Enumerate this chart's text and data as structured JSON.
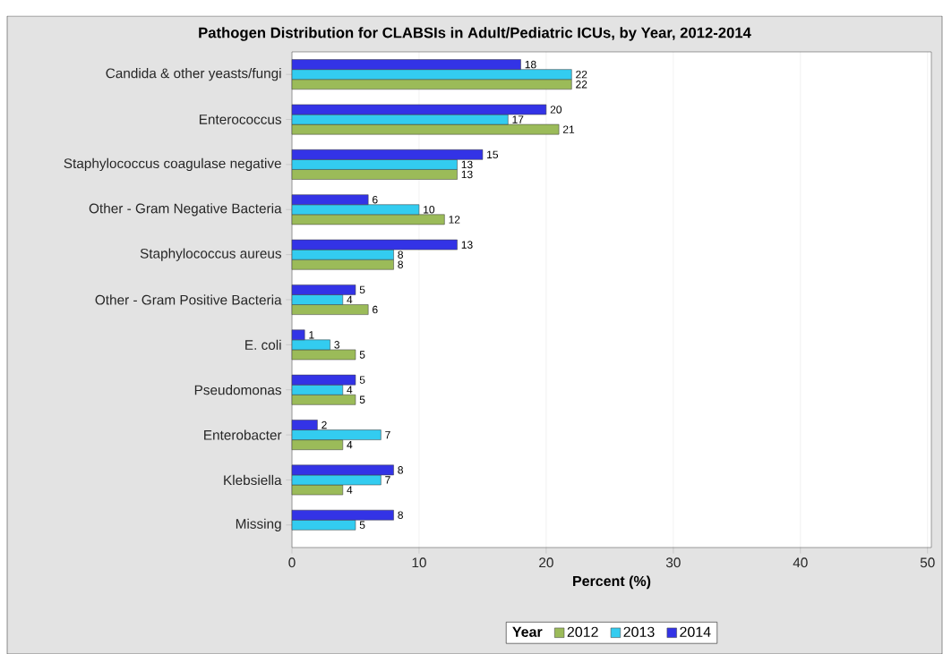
{
  "chart_data": {
    "type": "bar",
    "orientation": "horizontal",
    "title": "Pathogen Distribution for CLABSIs in Adult/Pediatric ICUs, by Year, 2012-2014",
    "xlabel": "Percent (%)",
    "legend_title": "Year",
    "categories": [
      "Candida & other yeasts/fungi",
      "Enterococcus",
      "Staphylococcus coagulase negative",
      "Other - Gram Negative Bacteria",
      "Staphylococcus aureus",
      "Other - Gram Positive Bacteria",
      "E. coli",
      "Pseudomonas",
      "Enterobacter",
      "Klebsiella",
      "Missing"
    ],
    "series": [
      {
        "name": "2012",
        "color": "#9bbb59",
        "values": [
          22,
          21,
          13,
          12,
          8,
          6,
          5,
          5,
          4,
          4,
          null
        ]
      },
      {
        "name": "2013",
        "color": "#33ccf0",
        "values": [
          22,
          17,
          13,
          10,
          8,
          4,
          3,
          4,
          7,
          7,
          5
        ]
      },
      {
        "name": "2014",
        "color": "#3333e6",
        "values": [
          18,
          20,
          15,
          6,
          13,
          5,
          1,
          5,
          2,
          8,
          8
        ]
      }
    ],
    "xlim": [
      0,
      50.3
    ],
    "xticks": [
      0,
      10,
      20,
      30,
      40,
      50
    ],
    "grid": "x",
    "legend": "bottom",
    "data_labels": true
  }
}
